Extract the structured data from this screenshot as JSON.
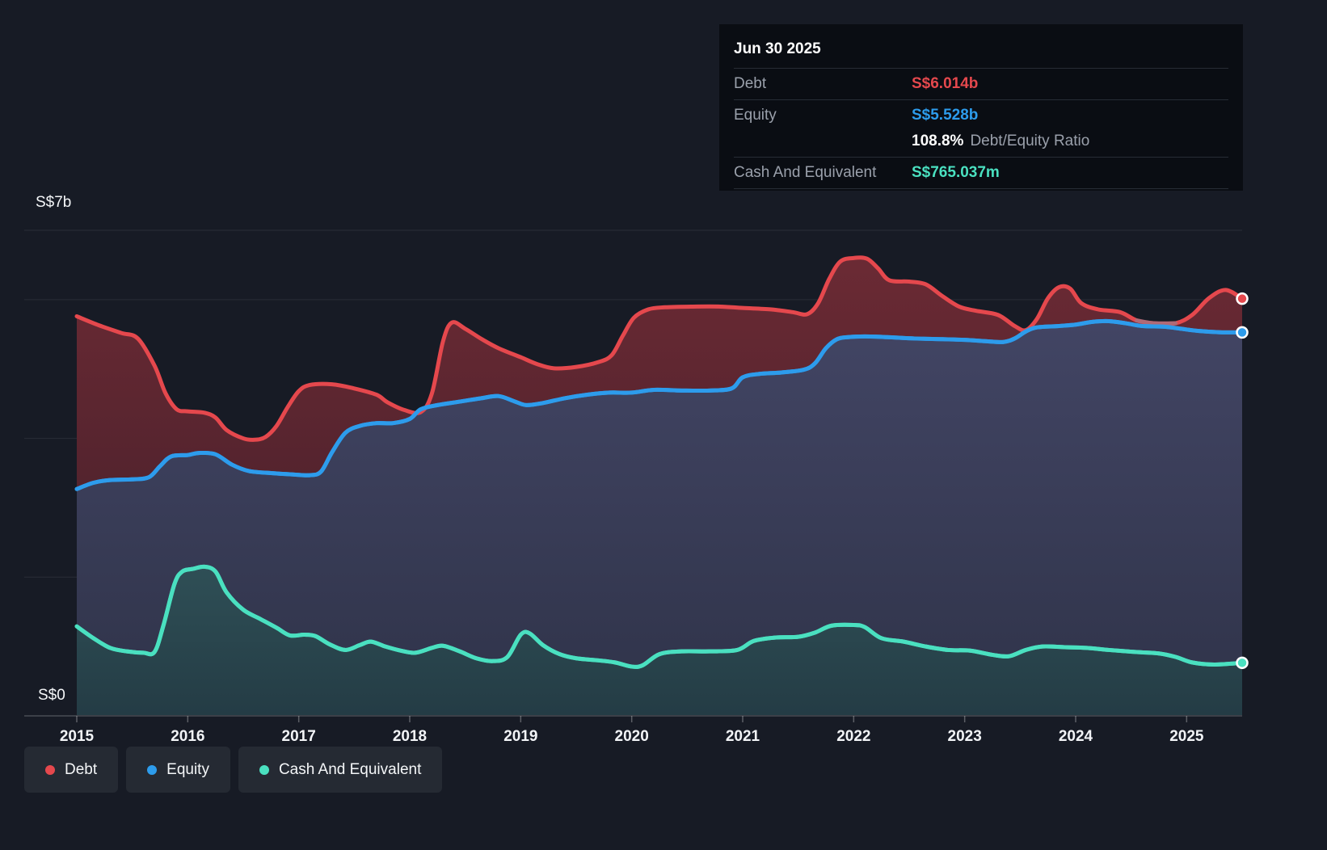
{
  "tooltip": {
    "date": "Jun 30 2025",
    "debt": {
      "label": "Debt",
      "value": "S$6.014b",
      "color": "#e5484d"
    },
    "equity": {
      "label": "Equity",
      "value": "S$5.528b",
      "color": "#2d9cec"
    },
    "ratio": {
      "value": "108.8%",
      "label": "Debt/Equity Ratio"
    },
    "cash": {
      "label": "Cash And Equivalent",
      "value": "S$765.037m",
      "color": "#4ae0c0"
    }
  },
  "legend": {
    "items": [
      {
        "label": "Debt",
        "color": "#e5484d"
      },
      {
        "label": "Equity",
        "color": "#2d9cec"
      },
      {
        "label": "Cash And Equivalent",
        "color": "#4ae0c0"
      }
    ]
  },
  "chart_data": {
    "type": "area",
    "unit": "S$ billions",
    "x_ticks": [
      2015,
      2016,
      2017,
      2018,
      2019,
      2020,
      2021,
      2022,
      2023,
      2024,
      2025
    ],
    "x_range": [
      2015.0,
      2025.5
    ],
    "y_axis": {
      "top_label": "S$7b",
      "bottom_label": "S$0",
      "min": 0,
      "max": 7,
      "gridline_values": [
        2,
        4,
        6
      ]
    },
    "grid": "horizontal-only",
    "legend_position": "bottom-left",
    "series": [
      {
        "name": "Debt",
        "color": "#e5484d",
        "fill_top": "#6b2a34",
        "fill_bottom": "#3c1d28",
        "points": [
          [
            2015.0,
            5.76
          ],
          [
            2015.2,
            5.63
          ],
          [
            2015.4,
            5.52
          ],
          [
            2015.55,
            5.44
          ],
          [
            2015.7,
            5.05
          ],
          [
            2015.8,
            4.65
          ],
          [
            2015.9,
            4.42
          ],
          [
            2016.0,
            4.39
          ],
          [
            2016.15,
            4.37
          ],
          [
            2016.25,
            4.3
          ],
          [
            2016.35,
            4.12
          ],
          [
            2016.5,
            4.0
          ],
          [
            2016.6,
            3.98
          ],
          [
            2016.7,
            4.02
          ],
          [
            2016.8,
            4.18
          ],
          [
            2016.9,
            4.45
          ],
          [
            2017.0,
            4.68
          ],
          [
            2017.1,
            4.77
          ],
          [
            2017.3,
            4.78
          ],
          [
            2017.5,
            4.72
          ],
          [
            2017.7,
            4.63
          ],
          [
            2017.8,
            4.52
          ],
          [
            2017.95,
            4.41
          ],
          [
            2018.1,
            4.38
          ],
          [
            2018.2,
            4.65
          ],
          [
            2018.3,
            5.4
          ],
          [
            2018.38,
            5.67
          ],
          [
            2018.5,
            5.58
          ],
          [
            2018.65,
            5.43
          ],
          [
            2018.8,
            5.3
          ],
          [
            2019.0,
            5.17
          ],
          [
            2019.15,
            5.07
          ],
          [
            2019.3,
            5.01
          ],
          [
            2019.5,
            5.03
          ],
          [
            2019.7,
            5.1
          ],
          [
            2019.82,
            5.2
          ],
          [
            2019.92,
            5.48
          ],
          [
            2020.02,
            5.74
          ],
          [
            2020.15,
            5.86
          ],
          [
            2020.3,
            5.89
          ],
          [
            2020.55,
            5.9
          ],
          [
            2020.8,
            5.9
          ],
          [
            2021.0,
            5.88
          ],
          [
            2021.25,
            5.86
          ],
          [
            2021.45,
            5.82
          ],
          [
            2021.58,
            5.79
          ],
          [
            2021.68,
            5.95
          ],
          [
            2021.78,
            6.3
          ],
          [
            2021.88,
            6.55
          ],
          [
            2022.0,
            6.6
          ],
          [
            2022.12,
            6.59
          ],
          [
            2022.22,
            6.45
          ],
          [
            2022.32,
            6.28
          ],
          [
            2022.5,
            6.26
          ],
          [
            2022.65,
            6.22
          ],
          [
            2022.8,
            6.05
          ],
          [
            2022.95,
            5.9
          ],
          [
            2023.1,
            5.84
          ],
          [
            2023.3,
            5.78
          ],
          [
            2023.45,
            5.62
          ],
          [
            2023.55,
            5.56
          ],
          [
            2023.65,
            5.72
          ],
          [
            2023.75,
            6.02
          ],
          [
            2023.85,
            6.18
          ],
          [
            2023.95,
            6.16
          ],
          [
            2024.05,
            5.95
          ],
          [
            2024.2,
            5.86
          ],
          [
            2024.4,
            5.82
          ],
          [
            2024.55,
            5.7
          ],
          [
            2024.7,
            5.66
          ],
          [
            2024.9,
            5.66
          ],
          [
            2025.05,
            5.78
          ],
          [
            2025.2,
            6.02
          ],
          [
            2025.35,
            6.14
          ],
          [
            2025.5,
            6.014
          ]
        ],
        "muted_segment_x": [
          2024.42,
          2025.0
        ],
        "muted_color": "#b06a77",
        "end_value": 6.014
      },
      {
        "name": "Equity",
        "color": "#2d9cec",
        "fill_top": "#424564",
        "fill_bottom": "#2f3349",
        "points": [
          [
            2015.0,
            3.27
          ],
          [
            2015.15,
            3.36
          ],
          [
            2015.3,
            3.4
          ],
          [
            2015.5,
            3.41
          ],
          [
            2015.65,
            3.44
          ],
          [
            2015.75,
            3.6
          ],
          [
            2015.85,
            3.74
          ],
          [
            2016.0,
            3.76
          ],
          [
            2016.1,
            3.79
          ],
          [
            2016.25,
            3.77
          ],
          [
            2016.4,
            3.62
          ],
          [
            2016.55,
            3.53
          ],
          [
            2016.75,
            3.5
          ],
          [
            2016.95,
            3.48
          ],
          [
            2017.1,
            3.47
          ],
          [
            2017.2,
            3.52
          ],
          [
            2017.3,
            3.8
          ],
          [
            2017.42,
            4.08
          ],
          [
            2017.55,
            4.18
          ],
          [
            2017.7,
            4.22
          ],
          [
            2017.85,
            4.22
          ],
          [
            2018.0,
            4.28
          ],
          [
            2018.1,
            4.42
          ],
          [
            2018.25,
            4.48
          ],
          [
            2018.45,
            4.53
          ],
          [
            2018.65,
            4.58
          ],
          [
            2018.8,
            4.61
          ],
          [
            2018.95,
            4.53
          ],
          [
            2019.05,
            4.48
          ],
          [
            2019.2,
            4.51
          ],
          [
            2019.4,
            4.58
          ],
          [
            2019.6,
            4.63
          ],
          [
            2019.8,
            4.66
          ],
          [
            2020.0,
            4.66
          ],
          [
            2020.2,
            4.7
          ],
          [
            2020.45,
            4.69
          ],
          [
            2020.7,
            4.69
          ],
          [
            2020.9,
            4.72
          ],
          [
            2021.0,
            4.88
          ],
          [
            2021.15,
            4.93
          ],
          [
            2021.35,
            4.95
          ],
          [
            2021.55,
            4.99
          ],
          [
            2021.65,
            5.08
          ],
          [
            2021.75,
            5.3
          ],
          [
            2021.85,
            5.43
          ],
          [
            2021.95,
            5.46
          ],
          [
            2022.1,
            5.47
          ],
          [
            2022.3,
            5.46
          ],
          [
            2022.55,
            5.44
          ],
          [
            2022.8,
            5.43
          ],
          [
            2023.0,
            5.42
          ],
          [
            2023.2,
            5.4
          ],
          [
            2023.35,
            5.39
          ],
          [
            2023.45,
            5.44
          ],
          [
            2023.55,
            5.54
          ],
          [
            2023.65,
            5.6
          ],
          [
            2023.85,
            5.62
          ],
          [
            2024.0,
            5.64
          ],
          [
            2024.15,
            5.68
          ],
          [
            2024.3,
            5.69
          ],
          [
            2024.45,
            5.66
          ],
          [
            2024.6,
            5.62
          ],
          [
            2024.8,
            5.61
          ],
          [
            2024.95,
            5.58
          ],
          [
            2025.1,
            5.55
          ],
          [
            2025.3,
            5.53
          ],
          [
            2025.5,
            5.528
          ]
        ],
        "end_value": 5.528
      },
      {
        "name": "Cash And Equivalent",
        "color": "#4ae0c0",
        "fill_top": "#2f4f56",
        "fill_bottom": "#243c45",
        "points": [
          [
            2015.0,
            1.29
          ],
          [
            2015.15,
            1.12
          ],
          [
            2015.3,
            0.98
          ],
          [
            2015.45,
            0.93
          ],
          [
            2015.6,
            0.91
          ],
          [
            2015.7,
            0.92
          ],
          [
            2015.78,
            1.3
          ],
          [
            2015.88,
            1.9
          ],
          [
            2015.95,
            2.08
          ],
          [
            2016.05,
            2.12
          ],
          [
            2016.15,
            2.15
          ],
          [
            2016.25,
            2.08
          ],
          [
            2016.35,
            1.78
          ],
          [
            2016.5,
            1.53
          ],
          [
            2016.65,
            1.4
          ],
          [
            2016.8,
            1.27
          ],
          [
            2016.92,
            1.16
          ],
          [
            2017.05,
            1.17
          ],
          [
            2017.15,
            1.15
          ],
          [
            2017.28,
            1.03
          ],
          [
            2017.42,
            0.95
          ],
          [
            2017.55,
            1.02
          ],
          [
            2017.65,
            1.07
          ],
          [
            2017.78,
            1.0
          ],
          [
            2017.92,
            0.94
          ],
          [
            2018.05,
            0.91
          ],
          [
            2018.2,
            0.98
          ],
          [
            2018.3,
            1.01
          ],
          [
            2018.45,
            0.93
          ],
          [
            2018.6,
            0.83
          ],
          [
            2018.75,
            0.79
          ],
          [
            2018.88,
            0.85
          ],
          [
            2019.0,
            1.17
          ],
          [
            2019.08,
            1.19
          ],
          [
            2019.2,
            1.02
          ],
          [
            2019.35,
            0.89
          ],
          [
            2019.5,
            0.83
          ],
          [
            2019.7,
            0.8
          ],
          [
            2019.85,
            0.77
          ],
          [
            2020.0,
            0.71
          ],
          [
            2020.1,
            0.73
          ],
          [
            2020.25,
            0.89
          ],
          [
            2020.45,
            0.93
          ],
          [
            2020.7,
            0.93
          ],
          [
            2020.95,
            0.95
          ],
          [
            2021.1,
            1.08
          ],
          [
            2021.3,
            1.13
          ],
          [
            2021.5,
            1.14
          ],
          [
            2021.65,
            1.2
          ],
          [
            2021.8,
            1.3
          ],
          [
            2022.0,
            1.31
          ],
          [
            2022.1,
            1.28
          ],
          [
            2022.25,
            1.12
          ],
          [
            2022.45,
            1.07
          ],
          [
            2022.65,
            1.0
          ],
          [
            2022.85,
            0.95
          ],
          [
            2023.05,
            0.94
          ],
          [
            2023.25,
            0.88
          ],
          [
            2023.4,
            0.86
          ],
          [
            2023.55,
            0.95
          ],
          [
            2023.7,
            1.0
          ],
          [
            2023.9,
            0.99
          ],
          [
            2024.1,
            0.98
          ],
          [
            2024.3,
            0.95
          ],
          [
            2024.55,
            0.92
          ],
          [
            2024.75,
            0.9
          ],
          [
            2024.9,
            0.85
          ],
          [
            2025.05,
            0.77
          ],
          [
            2025.25,
            0.74
          ],
          [
            2025.5,
            0.765
          ]
        ],
        "end_value": 0.765
      }
    ],
    "colors": {
      "background": "#171b25",
      "gridline": "rgba(255,255,255,0.08)",
      "axis_line": "rgba(255,255,255,0.22)",
      "tick_label": "#f2f4f7"
    }
  }
}
